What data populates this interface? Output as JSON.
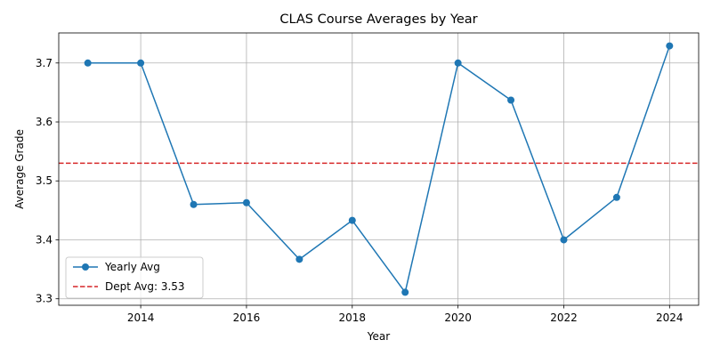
{
  "chart_data": {
    "type": "line",
    "title": "CLAS Course Averages by Year",
    "xlabel": "Year",
    "ylabel": "Average Grade",
    "xlim": [
      2012.45,
      2024.55
    ],
    "ylim": [
      3.289,
      3.751
    ],
    "xticks": [
      2014,
      2016,
      2018,
      2020,
      2022,
      2024
    ],
    "yticks": [
      3.3,
      3.4,
      3.5,
      3.6,
      3.7
    ],
    "x": [
      2013,
      2014,
      2015,
      2016,
      2017,
      2018,
      2019,
      2020,
      2021,
      2022,
      2023,
      2024
    ],
    "series": [
      {
        "name": "Yearly Avg",
        "color": "#1f77b4",
        "marker": "circle",
        "values": [
          3.7,
          3.7,
          3.46,
          3.463,
          3.367,
          3.433,
          3.311,
          3.7,
          3.637,
          3.4,
          3.472,
          3.729
        ]
      }
    ],
    "reference_line": {
      "label": "Dept Avg: 3.53",
      "value": 3.53,
      "color": "#d62728",
      "style": "dashed"
    },
    "grid": true,
    "legend_position": "lower-left"
  }
}
